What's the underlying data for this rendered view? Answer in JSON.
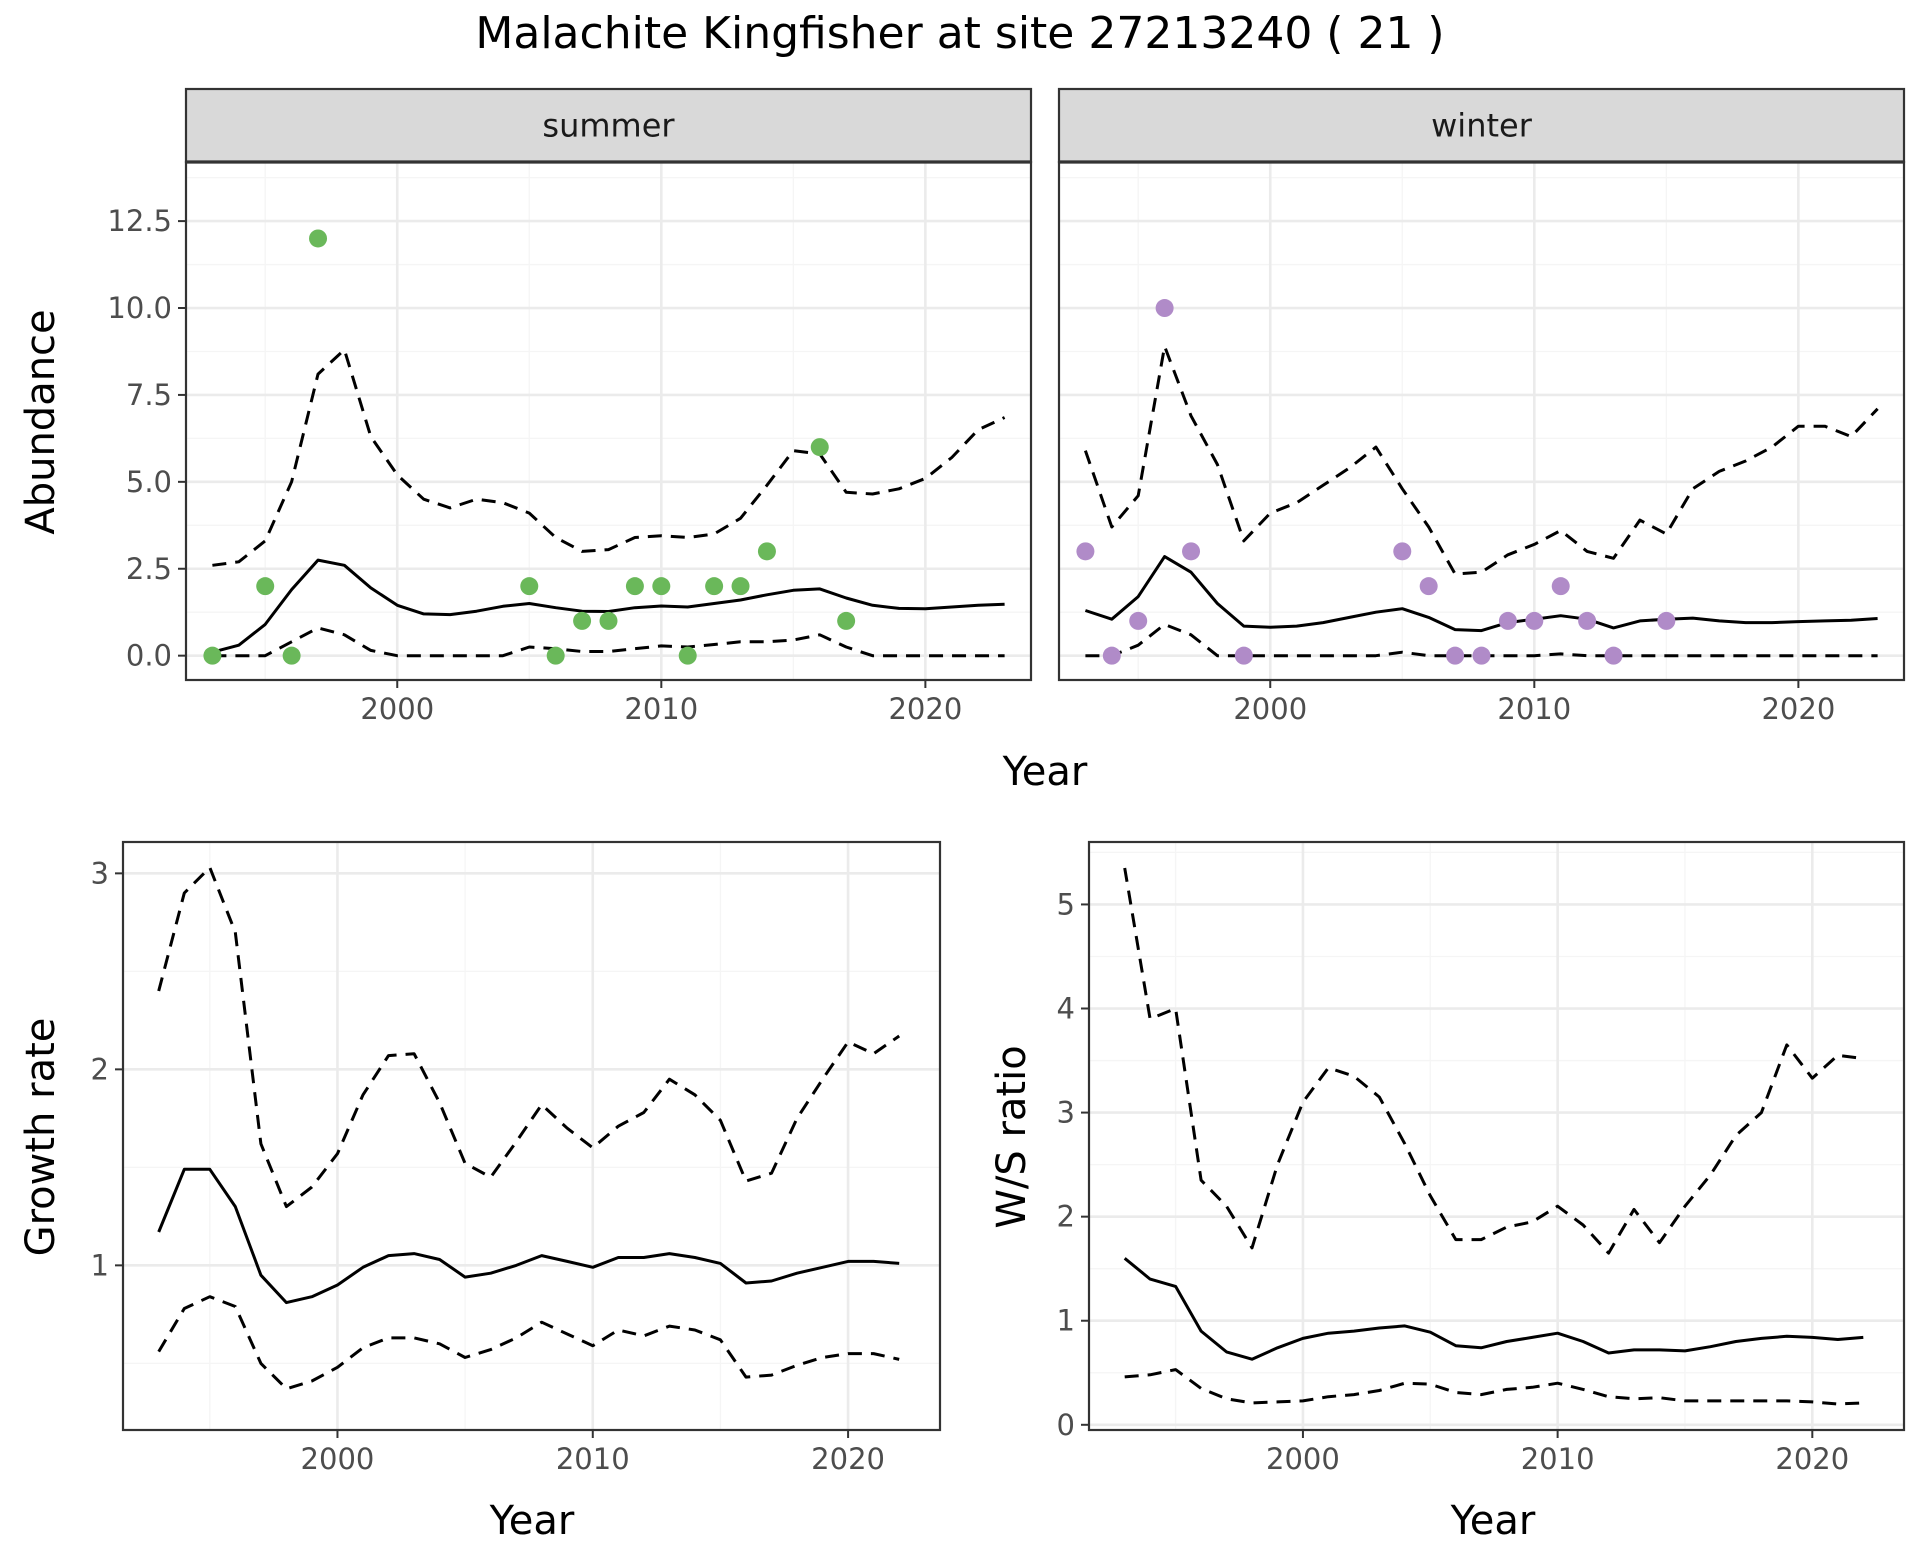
{
  "title": "Malachite Kingfisher at site 27213240 ( 21 )",
  "top_xlabel": "Year",
  "colors": {
    "summer_points": "#6ab85a",
    "winter_points": "#b08bc8",
    "lines": "#000000",
    "strip_bg": "#d9d9d9",
    "grid_major": "#ebebeb",
    "grid_minor": "#f5f5f5"
  },
  "chart_data": [
    {
      "type": "line",
      "panel": "summer",
      "strip_label": "summer",
      "ylabel": "Abundance",
      "xlabel": "Year",
      "xlim": [
        1992,
        2024
      ],
      "ylim": [
        -0.7,
        14.2
      ],
      "x_ticks": [
        2000,
        2010,
        2020
      ],
      "y_ticks": [
        0.0,
        2.5,
        5.0,
        7.5,
        10.0,
        12.5
      ],
      "y_tick_labels": [
        "0.0",
        "2.5",
        "5.0",
        "7.5",
        "10.0",
        "12.5"
      ],
      "grid": true,
      "x": [
        1993,
        1994,
        1995,
        1996,
        1997,
        1998,
        1999,
        2000,
        2001,
        2002,
        2003,
        2004,
        2005,
        2006,
        2007,
        2008,
        2009,
        2010,
        2011,
        2012,
        2013,
        2014,
        2015,
        2016,
        2017,
        2018,
        2019,
        2020,
        2021,
        2022,
        2023
      ],
      "series": [
        {
          "style": "solid",
          "values": [
            0.1,
            0.3,
            0.9,
            1.9,
            2.75,
            2.6,
            1.95,
            1.45,
            1.2,
            1.18,
            1.28,
            1.42,
            1.5,
            1.38,
            1.28,
            1.27,
            1.38,
            1.43,
            1.4,
            1.5,
            1.6,
            1.75,
            1.88,
            1.92,
            1.66,
            1.45,
            1.36,
            1.35,
            1.4,
            1.45,
            1.48
          ]
        },
        {
          "style": "dashed",
          "values": [
            2.6,
            2.7,
            3.3,
            5.0,
            8.1,
            8.8,
            6.3,
            5.2,
            4.5,
            4.25,
            4.5,
            4.4,
            4.1,
            3.4,
            3.0,
            3.05,
            3.4,
            3.45,
            3.4,
            3.5,
            3.95,
            4.9,
            5.9,
            5.8,
            4.7,
            4.65,
            4.8,
            5.1,
            5.7,
            6.5,
            6.85
          ]
        },
        {
          "style": "dashed",
          "values": [
            0,
            0,
            0,
            0.4,
            0.8,
            0.6,
            0.15,
            0,
            0,
            0,
            0,
            0,
            0.25,
            0.2,
            0.12,
            0.12,
            0.2,
            0.28,
            0.25,
            0.32,
            0.4,
            0.4,
            0.45,
            0.6,
            0.25,
            0,
            0,
            0,
            0,
            0,
            0
          ]
        }
      ],
      "points": {
        "x": [
          1993,
          1995,
          1996,
          1997,
          2005,
          2006,
          2007,
          2008,
          2009,
          2010,
          2011,
          2012,
          2013,
          2014,
          2016,
          2017
        ],
        "y": [
          0,
          2,
          0,
          12,
          2,
          0,
          1,
          1,
          2,
          2,
          0,
          2,
          2,
          3,
          6,
          1
        ]
      }
    },
    {
      "type": "line",
      "panel": "winter",
      "strip_label": "winter",
      "xlim": [
        1992,
        2024
      ],
      "ylim": [
        -0.7,
        14.2
      ],
      "x_ticks": [
        2000,
        2010,
        2020
      ],
      "y_ticks": [
        0.0,
        2.5,
        5.0,
        7.5,
        10.0,
        12.5
      ],
      "grid": true,
      "x": [
        1993,
        1994,
        1995,
        1996,
        1997,
        1998,
        1999,
        2000,
        2001,
        2002,
        2003,
        2004,
        2005,
        2006,
        2007,
        2008,
        2009,
        2010,
        2011,
        2012,
        2013,
        2014,
        2015,
        2016,
        2017,
        2018,
        2019,
        2020,
        2021,
        2022,
        2023
      ],
      "series": [
        {
          "style": "solid",
          "values": [
            1.3,
            1.05,
            1.7,
            2.85,
            2.4,
            1.5,
            0.85,
            0.82,
            0.85,
            0.95,
            1.1,
            1.25,
            1.35,
            1.1,
            0.75,
            0.72,
            0.95,
            1.05,
            1.15,
            1.05,
            0.8,
            1.0,
            1.05,
            1.08,
            1.0,
            0.95,
            0.95,
            0.98,
            1.0,
            1.02,
            1.07
          ]
        },
        {
          "style": "dashed",
          "values": [
            5.9,
            3.7,
            4.6,
            8.9,
            6.9,
            5.5,
            3.3,
            4.1,
            4.4,
            4.9,
            5.4,
            6.0,
            4.8,
            3.7,
            2.35,
            2.4,
            2.9,
            3.2,
            3.6,
            3.0,
            2.8,
            3.9,
            3.5,
            4.8,
            5.3,
            5.6,
            6.0,
            6.6,
            6.6,
            6.3,
            7.1
          ]
        },
        {
          "style": "dashed",
          "values": [
            0,
            0,
            0.3,
            0.9,
            0.6,
            0,
            0,
            0,
            0,
            0,
            0,
            0,
            0.1,
            0,
            0,
            0,
            0,
            0,
            0.05,
            0,
            0,
            0,
            0,
            0,
            0,
            0,
            0,
            0,
            0,
            0,
            0
          ]
        }
      ],
      "points": {
        "x": [
          1993,
          1994,
          1995,
          1996,
          1997,
          1999,
          2005,
          2006,
          2007,
          2008,
          2009,
          2010,
          2011,
          2012,
          2013,
          2015
        ],
        "y": [
          3,
          0,
          1,
          10,
          3,
          0,
          3,
          2,
          0,
          0,
          1,
          1,
          2,
          1,
          0,
          1
        ]
      }
    },
    {
      "type": "line",
      "panel": "growth",
      "ylabel": "Growth rate",
      "xlabel": "Year",
      "xlim": [
        1991.6,
        2023.6
      ],
      "ylim": [
        0.16,
        3.16
      ],
      "x_ticks": [
        2000,
        2010,
        2020
      ],
      "y_ticks": [
        1,
        2,
        3
      ],
      "y_tick_labels": [
        "1",
        "2",
        "3"
      ],
      "grid": true,
      "x": [
        1993,
        1994,
        1995,
        1996,
        1997,
        1998,
        1999,
        2000,
        2001,
        2002,
        2003,
        2004,
        2005,
        2006,
        2007,
        2008,
        2009,
        2010,
        2011,
        2012,
        2013,
        2014,
        2015,
        2016,
        2017,
        2018,
        2019,
        2020,
        2021,
        2022
      ],
      "series": [
        {
          "style": "solid",
          "values": [
            1.17,
            1.49,
            1.49,
            1.3,
            0.95,
            0.81,
            0.84,
            0.9,
            0.99,
            1.05,
            1.06,
            1.03,
            0.94,
            0.96,
            1.0,
            1.05,
            1.02,
            0.99,
            1.04,
            1.04,
            1.06,
            1.04,
            1.01,
            0.91,
            0.92,
            0.96,
            0.99,
            1.02,
            1.02,
            1.01
          ]
        },
        {
          "style": "dashed",
          "values": [
            2.4,
            2.9,
            3.03,
            2.7,
            1.62,
            1.3,
            1.4,
            1.57,
            1.87,
            2.07,
            2.08,
            1.83,
            1.52,
            1.45,
            1.63,
            1.82,
            1.7,
            1.6,
            1.71,
            1.78,
            1.95,
            1.87,
            1.74,
            1.43,
            1.47,
            1.75,
            1.95,
            2.14,
            2.08,
            2.17
          ]
        },
        {
          "style": "dashed",
          "values": [
            0.56,
            0.78,
            0.84,
            0.79,
            0.5,
            0.37,
            0.41,
            0.48,
            0.58,
            0.63,
            0.63,
            0.6,
            0.53,
            0.57,
            0.63,
            0.71,
            0.65,
            0.59,
            0.67,
            0.64,
            0.69,
            0.67,
            0.62,
            0.43,
            0.44,
            0.49,
            0.53,
            0.55,
            0.55,
            0.52
          ]
        }
      ]
    },
    {
      "type": "line",
      "panel": "ws_ratio",
      "ylabel": "W/S ratio",
      "xlabel": "Year",
      "xlim": [
        1991.6,
        2023.6
      ],
      "ylim": [
        -0.05,
        5.6
      ],
      "x_ticks": [
        2000,
        2010,
        2020
      ],
      "y_ticks": [
        0,
        1,
        2,
        3,
        4,
        5
      ],
      "y_tick_labels": [
        "0",
        "1",
        "2",
        "3",
        "4",
        "5"
      ],
      "grid": true,
      "x": [
        1993,
        1994,
        1995,
        1996,
        1997,
        1998,
        1999,
        2000,
        2001,
        2002,
        2003,
        2004,
        2005,
        2006,
        2007,
        2008,
        2009,
        2010,
        2011,
        2012,
        2013,
        2014,
        2015,
        2016,
        2017,
        2018,
        2019,
        2020,
        2021,
        2022
      ],
      "series": [
        {
          "style": "solid",
          "values": [
            1.6,
            1.4,
            1.33,
            0.9,
            0.7,
            0.63,
            0.74,
            0.83,
            0.88,
            0.9,
            0.93,
            0.95,
            0.89,
            0.76,
            0.74,
            0.8,
            0.84,
            0.88,
            0.8,
            0.69,
            0.72,
            0.72,
            0.71,
            0.75,
            0.8,
            0.83,
            0.85,
            0.84,
            0.82,
            0.84
          ]
        },
        {
          "style": "dashed",
          "values": [
            5.35,
            3.9,
            4.0,
            2.35,
            2.1,
            1.7,
            2.5,
            3.1,
            3.43,
            3.35,
            3.15,
            2.7,
            2.2,
            1.78,
            1.78,
            1.9,
            1.95,
            2.1,
            1.92,
            1.65,
            2.07,
            1.75,
            2.1,
            2.4,
            2.78,
            3.0,
            3.65,
            3.33,
            3.55,
            3.52
          ]
        },
        {
          "style": "dashed",
          "values": [
            0.46,
            0.48,
            0.53,
            0.35,
            0.25,
            0.21,
            0.22,
            0.23,
            0.27,
            0.29,
            0.33,
            0.4,
            0.39,
            0.31,
            0.29,
            0.34,
            0.36,
            0.4,
            0.34,
            0.27,
            0.25,
            0.26,
            0.23,
            0.23,
            0.23,
            0.23,
            0.23,
            0.22,
            0.2,
            0.21
          ]
        }
      ]
    }
  ]
}
